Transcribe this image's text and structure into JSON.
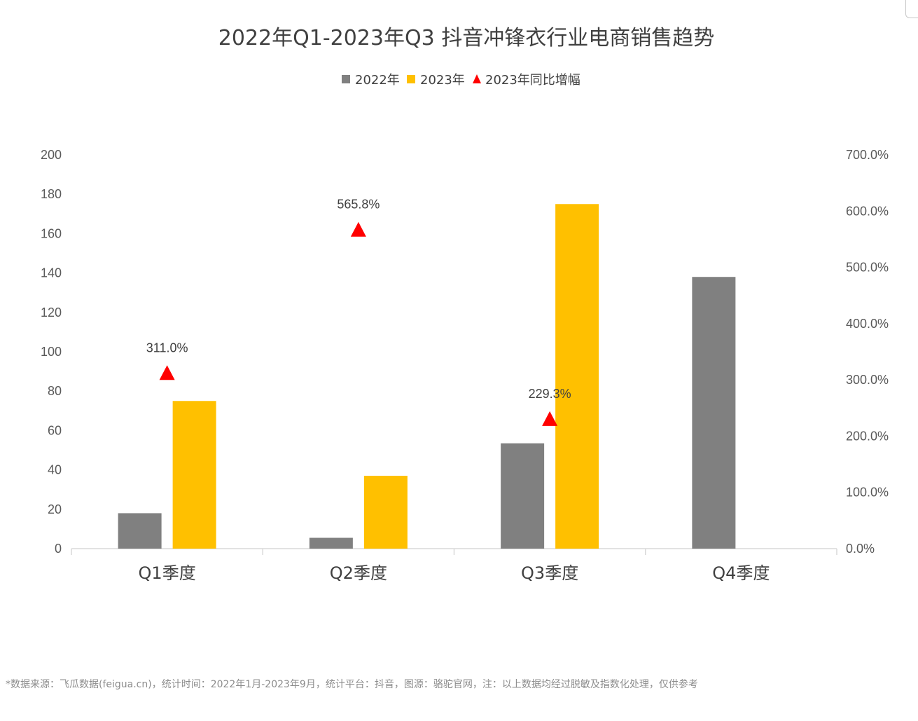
{
  "chart_data": {
    "type": "bar",
    "title": "2022年Q1-2023年Q3 抖音冲锋衣行业电商销售趋势",
    "categories": [
      "Q1季度",
      "Q2季度",
      "Q3季度",
      "Q4季度"
    ],
    "series": [
      {
        "name": "2022年",
        "values": [
          18,
          5.5,
          53.5,
          138
        ],
        "color": "#808080"
      },
      {
        "name": "2023年",
        "values": [
          75,
          37,
          175,
          null
        ],
        "color": "#FFC000"
      }
    ],
    "secondary_series": {
      "name": "2023年同比增幅",
      "marker": "triangle",
      "color": "#FF0000",
      "values": [
        311.0,
        565.8,
        229.3,
        null
      ],
      "labels": [
        "311.0%",
        "565.8%",
        "229.3%",
        ""
      ]
    },
    "y_left": {
      "ylim": [
        0,
        200
      ],
      "ticks": [
        "0",
        "20",
        "40",
        "60",
        "80",
        "100",
        "120",
        "140",
        "160",
        "180",
        "200"
      ]
    },
    "y_right": {
      "ylim": [
        0,
        700
      ],
      "ticks": [
        "0.0%",
        "100.0%",
        "200.0%",
        "300.0%",
        "400.0%",
        "500.0%",
        "600.0%",
        "700.0%"
      ]
    },
    "legend_position": "top-center",
    "grid": false,
    "source_note": "*数据来源：飞瓜数据(feigua.cn)，统计时间：2022年1月-2023年9月，统计平台：抖音，图源：骆驼官网，注：以上数据均经过脱敏及指数化处理，仅供参考"
  }
}
